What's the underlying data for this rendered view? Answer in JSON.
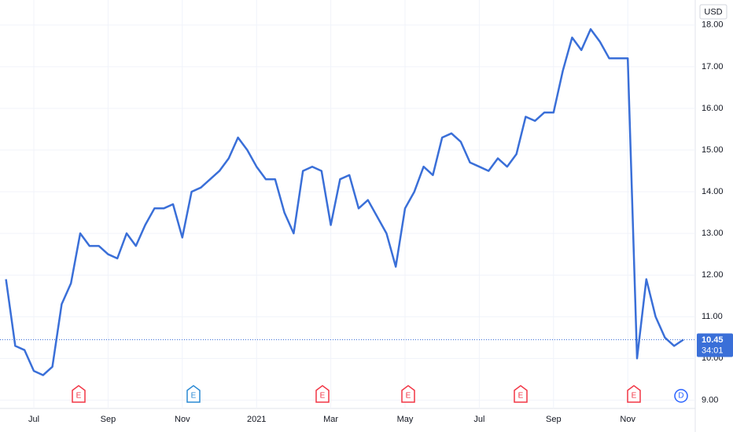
{
  "chart_data": {
    "type": "line",
    "currency": "USD",
    "categories": [
      null,
      null,
      null,
      "Jul",
      null,
      null,
      null,
      null,
      null,
      null,
      null,
      "Sep",
      null,
      null,
      null,
      null,
      null,
      null,
      null,
      "Nov",
      null,
      null,
      null,
      null,
      null,
      null,
      null,
      "2021",
      null,
      null,
      null,
      null,
      null,
      null,
      null,
      "Mar",
      null,
      null,
      null,
      null,
      null,
      null,
      null,
      "May",
      null,
      null,
      null,
      null,
      null,
      null,
      null,
      "Jul",
      null,
      null,
      null,
      null,
      null,
      null,
      null,
      "Sep",
      null,
      null,
      null,
      null,
      null,
      null,
      null,
      "Nov",
      null,
      null,
      null,
      null,
      null,
      null
    ],
    "series": [
      {
        "color": "#3a6fd8",
        "values": [
          11.9,
          10.3,
          10.2,
          9.7,
          9.6,
          9.8,
          11.3,
          11.8,
          13.0,
          12.7,
          12.7,
          12.5,
          12.4,
          13.0,
          12.7,
          13.2,
          13.6,
          13.6,
          13.7,
          12.9,
          14.0,
          14.1,
          14.3,
          14.5,
          14.8,
          15.3,
          15.0,
          14.6,
          14.3,
          14.3,
          13.5,
          13.0,
          14.5,
          14.6,
          14.5,
          13.2,
          14.3,
          14.4,
          13.6,
          13.8,
          13.4,
          13.0,
          12.2,
          13.6,
          14.0,
          14.6,
          14.4,
          15.3,
          15.4,
          15.2,
          14.7,
          14.6,
          14.5,
          14.8,
          14.6,
          14.9,
          15.8,
          15.7,
          15.9,
          15.9,
          16.9,
          17.7,
          17.4,
          17.9,
          17.6,
          17.2,
          17.2,
          17.2,
          10.0,
          11.9,
          11.0,
          10.5,
          10.3,
          10.45
        ]
      }
    ],
    "ylim": [
      8.8,
      18.6
    ],
    "yticks": [
      {
        "value": 9,
        "label": "9.00"
      },
      {
        "value": 10,
        "label": "10.00"
      },
      {
        "value": 11,
        "label": "11.00"
      },
      {
        "value": 12,
        "label": "12.00"
      },
      {
        "value": 13,
        "label": "13.00"
      },
      {
        "value": 14,
        "label": "14.00"
      },
      {
        "value": 15,
        "label": "15.00"
      },
      {
        "value": 16,
        "label": "16.00"
      },
      {
        "value": 17,
        "label": "17.00"
      },
      {
        "value": 18,
        "label": "18.00"
      }
    ],
    "last_price": 10.45,
    "countdown": "34:01",
    "events": [
      "E",
      "E",
      "E",
      "E",
      "E",
      "E",
      "D"
    ],
    "grid": true
  }
}
